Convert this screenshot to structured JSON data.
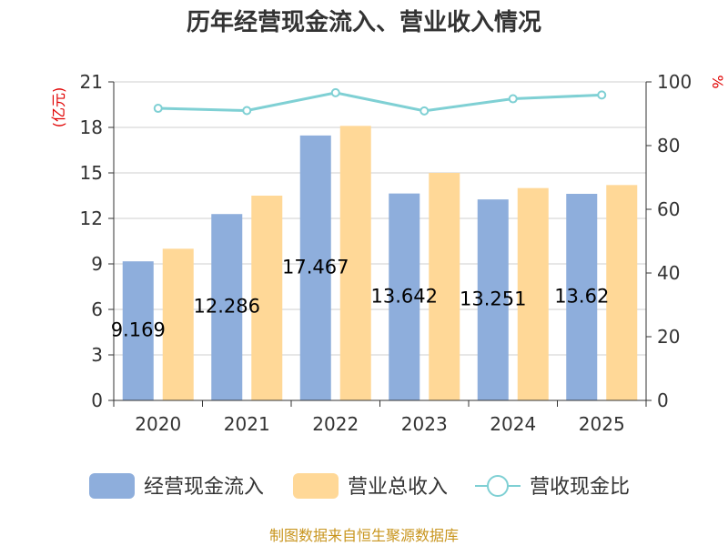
{
  "chart_data": {
    "type": "bar",
    "title": "历年经营现金流入、营业收入情况",
    "categories": [
      "2020",
      "2021",
      "2022",
      "2023",
      "2024",
      "2025"
    ],
    "left_axis": {
      "unit": "(亿元)",
      "ylim": [
        0,
        21
      ],
      "ticks": [
        0,
        3,
        6,
        9,
        12,
        15,
        18,
        21
      ]
    },
    "right_axis": {
      "unit": "%",
      "ylim": [
        0,
        100
      ],
      "ticks": [
        0,
        20,
        40,
        60,
        80,
        100
      ]
    },
    "series": [
      {
        "name": "经营现金流入",
        "type": "bar",
        "axis": "left",
        "color": "#8eaedc",
        "values": [
          9.169,
          12.286,
          17.467,
          13.642,
          13.251,
          13.62
        ],
        "labels": [
          "9.169",
          "12.286",
          "17.467",
          "13.642",
          "13.251",
          "13.62"
        ]
      },
      {
        "name": "营业总收入",
        "type": "bar",
        "axis": "left",
        "color": "#ffd897",
        "values": [
          10.0,
          13.5,
          18.1,
          15.0,
          14.0,
          14.2
        ]
      },
      {
        "name": "营收现金比",
        "type": "line",
        "axis": "right",
        "color": "#7fd0d4",
        "values": [
          91.7,
          91.0,
          96.6,
          90.9,
          94.7,
          95.9
        ]
      }
    ],
    "grid": true,
    "legend_position": "bottom",
    "source": "制图数据来自恒生聚源数据库"
  }
}
